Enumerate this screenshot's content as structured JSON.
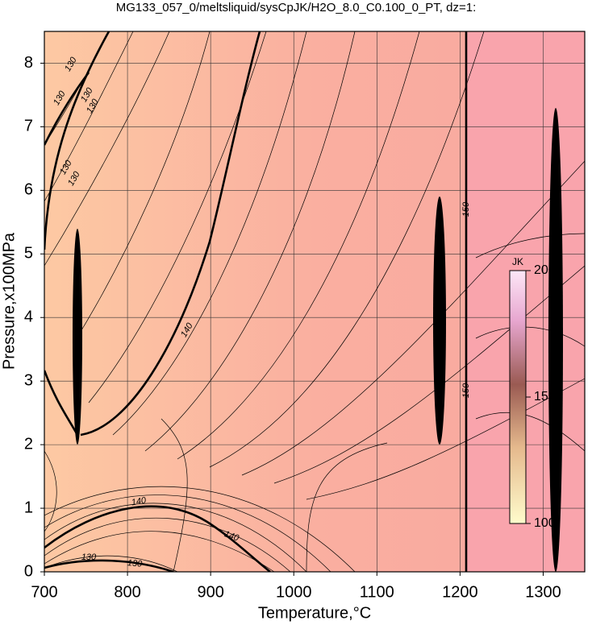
{
  "chart_data": {
    "type": "contour",
    "title": "MG133_057_0/meltsliquid/sysCpJK/H2O_8.0_C0.100_0_PT, dz=1:",
    "x_label": "Temperature,°C",
    "y_label": "Pressure,x100MPa",
    "xlim": [
      700,
      1350
    ],
    "ylim": [
      0,
      8.5
    ],
    "xticks": [
      700,
      800,
      900,
      1000,
      1100,
      1200,
      1300
    ],
    "yticks": [
      0,
      1,
      2,
      3,
      4,
      5,
      6,
      7,
      8
    ],
    "grid": true,
    "contour_labels": [
      130,
      130,
      130,
      130,
      130,
      130,
      140,
      140,
      140,
      140,
      150,
      150,
      130,
      130
    ],
    "colorbar": {
      "label": "JK",
      "lim": [
        100,
        200
      ],
      "ticks": [
        100,
        150,
        200
      ]
    }
  }
}
